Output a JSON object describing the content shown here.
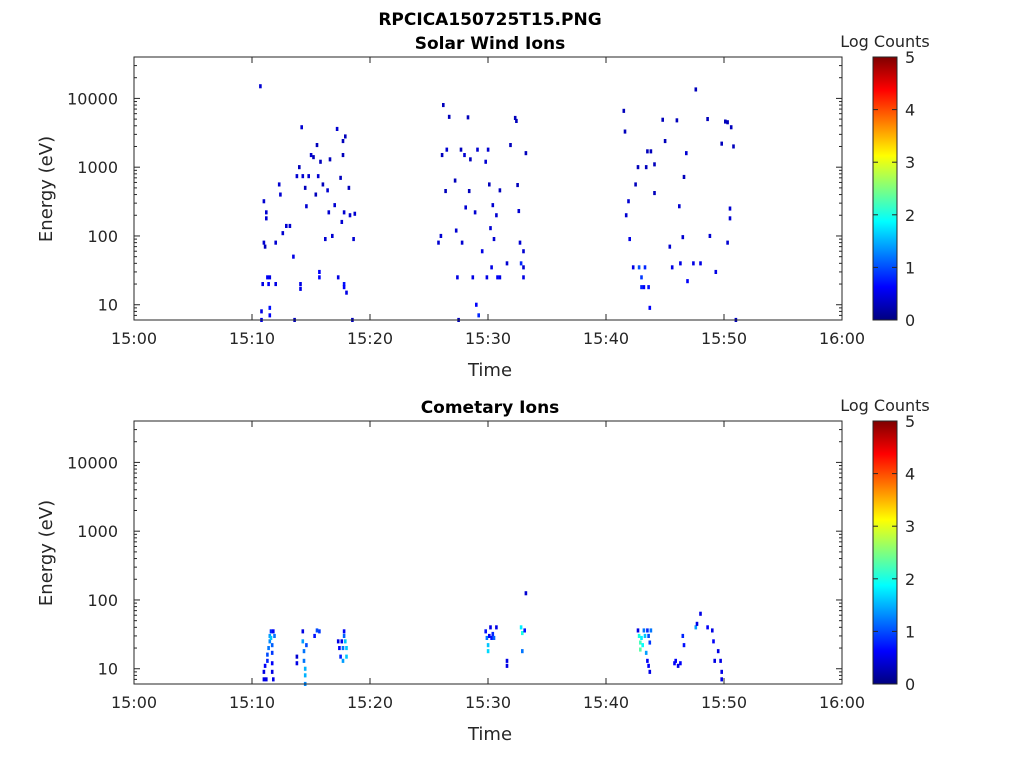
{
  "figure_title": "RPCICA150725T15.PNG",
  "colors": {
    "colormap": [
      "#00007f",
      "#0000ff",
      "#007fff",
      "#00ffff",
      "#7fff7f",
      "#ffff00",
      "#ff7f00",
      "#ff0000",
      "#7f0000"
    ],
    "axis": "#262626",
    "background": "#ffffff"
  },
  "chart_data": [
    {
      "type": "heatmap",
      "title": "Solar Wind Ions",
      "xlabel": "Time",
      "ylabel": "Energy (eV)",
      "xlim": [
        "15:00",
        "16:00"
      ],
      "xticks": [
        "15:00",
        "15:10",
        "15:20",
        "15:30",
        "15:40",
        "15:50",
        "16:00"
      ],
      "ylim": [
        6,
        40000
      ],
      "yscale": "log",
      "yticks": [
        10,
        100,
        1000,
        10000
      ],
      "ytick_labels": [
        "10",
        "100",
        "1000",
        "10000"
      ],
      "colorbar": {
        "label": "Log Counts",
        "range": [
          0,
          5
        ],
        "ticks": [
          "0",
          "1",
          "2",
          "3",
          "4",
          "5"
        ]
      },
      "cells": [
        [
          10.7,
          15000,
          0.4
        ],
        [
          10.8,
          8,
          0.5
        ],
        [
          10.8,
          6,
          0.5
        ],
        [
          10.9,
          20,
          0.5
        ],
        [
          11.0,
          320,
          0.4
        ],
        [
          11.0,
          80,
          0.4
        ],
        [
          11.1,
          70,
          0.3
        ],
        [
          11.2,
          220,
          0.4
        ],
        [
          11.2,
          180,
          0.4
        ],
        [
          11.3,
          25,
          0.6
        ],
        [
          11.4,
          20,
          0.6
        ],
        [
          11.5,
          25,
          0.5
        ],
        [
          11.5,
          9,
          0.7
        ],
        [
          11.5,
          7,
          0.6
        ],
        [
          12.0,
          80,
          0.4
        ],
        [
          12.0,
          20,
          0.5
        ],
        [
          12.3,
          560,
          0.4
        ],
        [
          12.4,
          400,
          0.4
        ],
        [
          12.6,
          110,
          0.4
        ],
        [
          12.9,
          140,
          0.4
        ],
        [
          13.2,
          140,
          0.4
        ],
        [
          13.5,
          50,
          0.5
        ],
        [
          13.6,
          6,
          0.3
        ],
        [
          13.8,
          740,
          0.4
        ],
        [
          14.0,
          1000,
          0.3
        ],
        [
          14.1,
          20,
          0.5
        ],
        [
          14.1,
          17,
          0.5
        ],
        [
          14.2,
          3800,
          0.4
        ],
        [
          14.3,
          740,
          0.4
        ],
        [
          14.5,
          500,
          0.3
        ],
        [
          14.6,
          270,
          0.4
        ],
        [
          14.8,
          740,
          0.4
        ],
        [
          15.0,
          1500,
          0.4
        ],
        [
          15.2,
          1400,
          0.3
        ],
        [
          15.4,
          400,
          0.3
        ],
        [
          15.5,
          2100,
          0.3
        ],
        [
          15.6,
          740,
          0.4
        ],
        [
          15.7,
          30,
          0.6
        ],
        [
          15.7,
          25,
          0.6
        ],
        [
          15.8,
          1200,
          0.3
        ],
        [
          16.0,
          560,
          0.3
        ],
        [
          16.2,
          90,
          0.4
        ],
        [
          16.4,
          460,
          0.4
        ],
        [
          16.5,
          220,
          0.4
        ],
        [
          16.6,
          1300,
          0.3
        ],
        [
          16.8,
          100,
          0.4
        ],
        [
          17.0,
          280,
          0.4
        ],
        [
          17.2,
          3600,
          0.4
        ],
        [
          17.3,
          25,
          0.5
        ],
        [
          17.5,
          700,
          0.3
        ],
        [
          17.6,
          160,
          0.4
        ],
        [
          17.7,
          2400,
          0.3
        ],
        [
          17.7,
          1500,
          0.3
        ],
        [
          17.8,
          220,
          0.4
        ],
        [
          17.8,
          20,
          0.7
        ],
        [
          17.8,
          18,
          0.6
        ],
        [
          17.9,
          2800,
          0.3
        ],
        [
          18.0,
          15,
          0.5
        ],
        [
          18.2,
          500,
          0.3
        ],
        [
          18.3,
          200,
          0.4
        ],
        [
          18.5,
          6,
          0.3
        ],
        [
          18.6,
          90,
          0.4
        ],
        [
          18.7,
          210,
          0.4
        ],
        [
          25.8,
          80,
          0.4
        ],
        [
          26.0,
          100,
          0.4
        ],
        [
          26.1,
          1500,
          0.3
        ],
        [
          26.2,
          8000,
          0.3
        ],
        [
          26.4,
          450,
          0.3
        ],
        [
          26.5,
          1800,
          0.4
        ],
        [
          26.7,
          5400,
          0.3
        ],
        [
          27.2,
          640,
          0.3
        ],
        [
          27.3,
          120,
          0.4
        ],
        [
          27.4,
          25,
          0.5
        ],
        [
          27.5,
          6,
          0.3
        ],
        [
          27.7,
          1800,
          0.3
        ],
        [
          27.8,
          80,
          0.4
        ],
        [
          28.0,
          1500,
          0.4
        ],
        [
          28.1,
          260,
          0.4
        ],
        [
          28.3,
          5300,
          0.3
        ],
        [
          28.4,
          450,
          0.3
        ],
        [
          28.5,
          1300,
          0.3
        ],
        [
          28.7,
          25,
          0.5
        ],
        [
          28.9,
          220,
          0.4
        ],
        [
          29.0,
          10,
          0.6
        ],
        [
          29.1,
          1800,
          0.4
        ],
        [
          29.2,
          7,
          0.8
        ],
        [
          29.5,
          60,
          0.5
        ],
        [
          29.8,
          1200,
          0.4
        ],
        [
          29.9,
          25,
          0.5
        ],
        [
          30.0,
          1800,
          0.4
        ],
        [
          30.1,
          560,
          0.3
        ],
        [
          30.2,
          130,
          0.4
        ],
        [
          30.3,
          35,
          0.5
        ],
        [
          30.4,
          280,
          0.4
        ],
        [
          30.5,
          90,
          0.4
        ],
        [
          30.7,
          200,
          0.4
        ],
        [
          30.8,
          25,
          0.6
        ],
        [
          31.0,
          460,
          0.3
        ],
        [
          31.0,
          25,
          0.5
        ],
        [
          31.6,
          40,
          0.4
        ],
        [
          31.9,
          2100,
          0.3
        ],
        [
          32.3,
          5200,
          0.3
        ],
        [
          32.4,
          4700,
          0.3
        ],
        [
          32.5,
          550,
          0.3
        ],
        [
          32.6,
          230,
          0.4
        ],
        [
          32.7,
          80,
          0.4
        ],
        [
          32.8,
          40,
          0.8
        ],
        [
          33.0,
          25,
          0.5
        ],
        [
          33.0,
          60,
          0.4
        ],
        [
          33.2,
          1600,
          0.3
        ],
        [
          33.0,
          35,
          0.4
        ],
        [
          41.5,
          6600,
          0.3
        ],
        [
          41.6,
          3300,
          0.3
        ],
        [
          41.7,
          200,
          0.4
        ],
        [
          41.9,
          320,
          0.4
        ],
        [
          42.0,
          90,
          0.5
        ],
        [
          42.3,
          35,
          0.5
        ],
        [
          42.5,
          560,
          0.3
        ],
        [
          42.7,
          1000,
          0.3
        ],
        [
          42.8,
          35,
          1.0
        ],
        [
          43.0,
          25,
          0.9
        ],
        [
          43.0,
          18,
          0.8
        ],
        [
          43.2,
          18,
          0.6
        ],
        [
          43.3,
          35,
          0.8
        ],
        [
          43.4,
          1000,
          0.3
        ],
        [
          43.5,
          1700,
          0.3
        ],
        [
          43.6,
          18,
          0.7
        ],
        [
          43.7,
          9,
          0.6
        ],
        [
          43.8,
          1700,
          0.3
        ],
        [
          44.1,
          1100,
          0.3
        ],
        [
          44.1,
          420,
          0.3
        ],
        [
          44.8,
          4900,
          0.3
        ],
        [
          45.0,
          2400,
          0.3
        ],
        [
          45.4,
          70,
          0.4
        ],
        [
          45.6,
          35,
          0.5
        ],
        [
          46.0,
          4800,
          0.3
        ],
        [
          46.2,
          270,
          0.4
        ],
        [
          46.3,
          40,
          0.5
        ],
        [
          46.5,
          96,
          0.4
        ],
        [
          46.6,
          720,
          0.3
        ],
        [
          46.8,
          1600,
          0.4
        ],
        [
          46.9,
          22,
          0.6
        ],
        [
          47.4,
          40,
          0.5
        ],
        [
          47.6,
          13500,
          0.3
        ],
        [
          48.0,
          40,
          0.5
        ],
        [
          48.6,
          5000,
          0.3
        ],
        [
          48.8,
          100,
          0.4
        ],
        [
          49.3,
          30,
          0.5
        ],
        [
          49.8,
          2200,
          0.3
        ],
        [
          50.1,
          4600,
          0.3
        ],
        [
          50.3,
          4500,
          0.3
        ],
        [
          50.3,
          80,
          0.4
        ],
        [
          50.5,
          250,
          0.4
        ],
        [
          50.5,
          180,
          0.4
        ],
        [
          50.6,
          3800,
          0.3
        ],
        [
          50.8,
          2000,
          0.3
        ],
        [
          51.0,
          6,
          0.3
        ]
      ]
    },
    {
      "type": "heatmap",
      "title": "Cometary Ions",
      "xlabel": "Time",
      "ylabel": "Energy (eV)",
      "xlim": [
        "15:00",
        "16:00"
      ],
      "xticks": [
        "15:00",
        "15:10",
        "15:20",
        "15:30",
        "15:40",
        "15:50",
        "16:00"
      ],
      "ylim": [
        6,
        40000
      ],
      "yscale": "log",
      "yticks": [
        10,
        100,
        1000,
        10000
      ],
      "ytick_labels": [
        "10",
        "100",
        "1000",
        "10000"
      ],
      "colorbar": {
        "label": "Log Counts",
        "range": [
          0,
          5
        ],
        "ticks": [
          "0",
          "1",
          "2",
          "3",
          "4",
          "5"
        ]
      },
      "cells": [
        [
          11.0,
          7,
          0.5
        ],
        [
          11.0,
          9,
          0.5
        ],
        [
          11.1,
          11,
          0.6
        ],
        [
          11.2,
          7,
          0.5
        ],
        [
          11.3,
          13,
          0.8
        ],
        [
          11.3,
          16,
          1.0
        ],
        [
          11.4,
          20,
          1.2
        ],
        [
          11.5,
          25,
          1.3
        ],
        [
          11.5,
          30,
          1.4
        ],
        [
          11.6,
          35,
          0.8
        ],
        [
          11.6,
          28,
          1.6
        ],
        [
          11.7,
          22,
          1.1
        ],
        [
          11.7,
          17,
          0.9
        ],
        [
          11.7,
          12,
          0.6
        ],
        [
          11.7,
          9,
          0.5
        ],
        [
          11.8,
          7,
          0.5
        ],
        [
          11.8,
          35,
          0.6
        ],
        [
          11.9,
          30,
          1.2
        ],
        [
          13.8,
          15,
          0.4
        ],
        [
          13.8,
          12,
          0.5
        ],
        [
          14.3,
          35,
          0.5
        ],
        [
          14.3,
          25,
          1.4
        ],
        [
          14.4,
          18,
          1.2
        ],
        [
          14.4,
          13,
          1.2
        ],
        [
          14.5,
          10,
          1.5
        ],
        [
          14.5,
          8,
          1.5
        ],
        [
          14.5,
          6,
          1.3
        ],
        [
          14.6,
          22,
          1.0
        ],
        [
          15.3,
          30,
          0.7
        ],
        [
          15.5,
          36,
          1.0
        ],
        [
          15.7,
          35,
          0.9
        ],
        [
          17.3,
          25,
          0.5
        ],
        [
          17.4,
          20,
          0.6
        ],
        [
          17.5,
          15,
          0.8
        ],
        [
          17.6,
          25,
          0.5
        ],
        [
          17.7,
          20,
          1.2
        ],
        [
          17.7,
          13,
          1.4
        ],
        [
          17.8,
          35,
          0.6
        ],
        [
          17.8,
          30,
          1.1
        ],
        [
          17.9,
          25,
          1.6
        ],
        [
          18.0,
          20,
          1.6
        ],
        [
          18.0,
          15,
          1.6
        ],
        [
          29.8,
          35,
          0.7
        ],
        [
          29.9,
          28,
          1.2
        ],
        [
          30.0,
          22,
          1.6
        ],
        [
          30.0,
          18,
          1.7
        ],
        [
          30.1,
          30,
          0.6
        ],
        [
          30.2,
          40,
          0.5
        ],
        [
          30.3,
          28,
          0.7
        ],
        [
          30.4,
          32,
          0.8
        ],
        [
          30.5,
          28,
          1.1
        ],
        [
          30.7,
          40,
          0.5
        ],
        [
          31.6,
          13,
          0.5
        ],
        [
          31.6,
          11,
          0.5
        ],
        [
          32.8,
          40,
          1.8
        ],
        [
          32.9,
          33,
          2.0
        ],
        [
          32.9,
          18,
          1.2
        ],
        [
          33.1,
          36,
          0.7
        ],
        [
          33.2,
          125,
          0.4
        ],
        [
          42.7,
          36,
          0.5
        ],
        [
          42.8,
          30,
          2.0
        ],
        [
          42.9,
          24,
          2.2
        ],
        [
          42.9,
          19,
          2.3
        ],
        [
          43.0,
          28,
          1.8
        ],
        [
          43.1,
          22,
          1.9
        ],
        [
          43.2,
          36,
          1.2
        ],
        [
          43.3,
          30,
          1.6
        ],
        [
          43.4,
          17,
          1.4
        ],
        [
          43.5,
          36,
          0.8
        ],
        [
          43.5,
          13,
          0.6
        ],
        [
          43.6,
          30,
          1.0
        ],
        [
          43.6,
          11,
          0.6
        ],
        [
          43.7,
          24,
          0.9
        ],
        [
          43.7,
          9,
          0.5
        ],
        [
          43.8,
          36,
          1.2
        ],
        [
          45.8,
          12,
          0.6
        ],
        [
          45.9,
          13,
          0.6
        ],
        [
          46.1,
          11,
          0.5
        ],
        [
          46.3,
          12,
          0.6
        ],
        [
          46.5,
          30,
          0.8
        ],
        [
          46.6,
          22,
          0.7
        ],
        [
          47.6,
          40,
          1.4
        ],
        [
          47.7,
          45,
          0.5
        ],
        [
          48.0,
          63,
          0.5
        ],
        [
          48.6,
          40,
          0.6
        ],
        [
          49.0,
          36,
          0.5
        ],
        [
          49.1,
          25,
          0.6
        ],
        [
          49.2,
          13,
          0.5
        ],
        [
          49.5,
          18,
          0.5
        ],
        [
          49.7,
          13,
          0.5
        ],
        [
          49.8,
          9,
          0.5
        ],
        [
          49.8,
          7,
          0.5
        ]
      ]
    }
  ]
}
